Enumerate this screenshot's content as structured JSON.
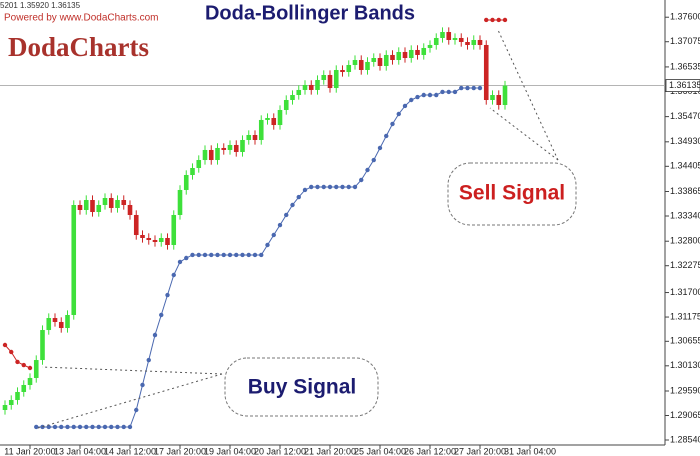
{
  "chart_data": {
    "type": "candlestick",
    "title": "Doda-Bollinger Bands",
    "header_text": "5201 1.35920 1.36135",
    "credit": "Powered by www.DodaCharts.com",
    "logo": "DodaCharts",
    "annotations": [
      "Sell Signal",
      "Buy Signal"
    ],
    "up_color": "#3ee03a",
    "down_color": "#cc2424",
    "ylim": [
      1.28433,
      1.37969
    ],
    "xlim": [
      -0.8,
      105.6
    ],
    "last_price": 1.36135,
    "yticks": [
      {
        "value": 1.376,
        "label": "1.37600"
      },
      {
        "value": 1.37075,
        "label": "1.37075"
      },
      {
        "value": 1.36535,
        "label": "1.36535"
      },
      {
        "value": 1.3601,
        "label": "1.36010"
      },
      {
        "value": 1.3547,
        "label": "1.35470"
      },
      {
        "value": 1.3493,
        "label": "1.34930"
      },
      {
        "value": 1.34405,
        "label": "1.34405"
      },
      {
        "value": 1.33865,
        "label": "1.33865"
      },
      {
        "value": 1.3334,
        "label": "1.33340"
      },
      {
        "value": 1.328,
        "label": "1.32800"
      },
      {
        "value": 1.32275,
        "label": "1.32275"
      },
      {
        "value": 1.317,
        "label": "1.31700"
      },
      {
        "value": 1.31175,
        "label": "1.31175"
      },
      {
        "value": 1.30655,
        "label": "1.30655"
      },
      {
        "value": 1.3013,
        "label": "1.30130"
      },
      {
        "value": 1.2959,
        "label": "1.29590"
      },
      {
        "value": 1.29065,
        "label": "1.29065"
      },
      {
        "value": 1.2854,
        "label": "1.28540"
      }
    ],
    "xticks": [
      {
        "value": 4,
        "label": "11 Jan 20:00"
      },
      {
        "value": 12,
        "label": "13 Jan 04:00"
      },
      {
        "value": 20,
        "label": "14 Jan 12:00"
      },
      {
        "value": 28,
        "label": "17 Jan 20:00"
      },
      {
        "value": 36,
        "label": "19 Jan 04:00"
      },
      {
        "value": 44,
        "label": "20 Jan 12:00"
      },
      {
        "value": 52,
        "label": "21 Jan 20:00"
      },
      {
        "value": 60,
        "label": "25 Jan 04:00"
      },
      {
        "value": 68,
        "label": "26 Jan 12:00"
      },
      {
        "value": 76,
        "label": "27 Jan 20:00"
      },
      {
        "value": 84,
        "label": "31 Jan 04:00"
      }
    ],
    "candles": {
      "open": [
        1.29183,
        1.2929,
        1.29397,
        1.29569,
        1.29719,
        1.29869,
        1.30254,
        1.30897,
        1.31154,
        1.31069,
        1.3094,
        1.31219,
        1.33576,
        1.33469,
        1.33683,
        1.33426,
        1.33576,
        1.33726,
        1.33512,
        1.33683,
        1.33576,
        1.33362,
        1.32933,
        1.32869,
        1.32826,
        1.32783,
        1.32869,
        1.32719,
        1.33362,
        1.33898,
        1.34219,
        1.34369,
        1.3454,
        1.34755,
        1.3454,
        1.34798,
        1.34755,
        1.34862,
        1.34712,
        1.34969,
        1.35076,
        1.34969,
        1.35398,
        1.3544,
        1.3529,
        1.35612,
        1.35826,
        1.35933,
        1.36041,
        1.36148,
        1.36041,
        1.36255,
        1.36362,
        1.36083,
        1.36469,
        1.36426,
        1.36576,
        1.36683,
        1.36469,
        1.36641,
        1.36726,
        1.36555,
        1.36791,
        1.36683,
        1.36855,
        1.36726,
        1.36898,
        1.36791,
        1.36941,
        1.37005,
        1.37155,
        1.37283,
        1.37112,
        1.37155,
        1.37069,
        1.37005,
        1.37112,
        1.37005,
        1.35826,
        1.35933,
        1.35719
      ],
      "high": [
        1.2939,
        1.29497,
        1.29669,
        1.29819,
        1.29969,
        1.30354,
        1.30997,
        1.31254,
        1.31254,
        1.31169,
        1.31319,
        1.33676,
        1.33676,
        1.33783,
        1.33783,
        1.33676,
        1.33826,
        1.33826,
        1.33783,
        1.33783,
        1.33676,
        1.33462,
        1.33033,
        1.32969,
        1.32926,
        1.32969,
        1.32969,
        1.33462,
        1.33998,
        1.34319,
        1.34469,
        1.3464,
        1.34855,
        1.34855,
        1.34898,
        1.34898,
        1.34962,
        1.34962,
        1.35069,
        1.35176,
        1.35176,
        1.35498,
        1.3554,
        1.3554,
        1.35712,
        1.35926,
        1.36033,
        1.36141,
        1.36248,
        1.36248,
        1.36355,
        1.36462,
        1.36462,
        1.36569,
        1.36569,
        1.36676,
        1.36783,
        1.36783,
        1.36741,
        1.36826,
        1.36826,
        1.36891,
        1.36891,
        1.36955,
        1.36955,
        1.36998,
        1.36998,
        1.37041,
        1.37105,
        1.37255,
        1.37383,
        1.37383,
        1.37255,
        1.37255,
        1.37169,
        1.37212,
        1.37212,
        1.37105,
        1.36033,
        1.36033,
        1.36235
      ],
      "low": [
        1.29083,
        1.2919,
        1.29297,
        1.29469,
        1.29619,
        1.29769,
        1.30154,
        1.30797,
        1.30969,
        1.3084,
        1.3084,
        1.31119,
        1.33369,
        1.33369,
        1.33326,
        1.33326,
        1.33476,
        1.33412,
        1.33412,
        1.33476,
        1.33262,
        1.32833,
        1.32769,
        1.32726,
        1.32683,
        1.32683,
        1.32619,
        1.32619,
        1.33262,
        1.33798,
        1.34119,
        1.34269,
        1.3444,
        1.3444,
        1.3444,
        1.34655,
        1.34655,
        1.34612,
        1.34612,
        1.34869,
        1.34869,
        1.34869,
        1.35298,
        1.3519,
        1.3519,
        1.35512,
        1.35726,
        1.35833,
        1.35941,
        1.35941,
        1.35941,
        1.36155,
        1.35983,
        1.35983,
        1.36326,
        1.36326,
        1.36476,
        1.36369,
        1.36369,
        1.36541,
        1.36455,
        1.36455,
        1.36583,
        1.36583,
        1.36626,
        1.36626,
        1.36691,
        1.36691,
        1.36841,
        1.36905,
        1.37055,
        1.37012,
        1.37012,
        1.36969,
        1.36905,
        1.36905,
        1.36905,
        1.35726,
        1.35726,
        1.35619,
        1.35619
      ],
      "close": [
        1.2929,
        1.29397,
        1.29569,
        1.29719,
        1.29869,
        1.30254,
        1.30897,
        1.31154,
        1.31069,
        1.3094,
        1.31219,
        1.33576,
        1.33469,
        1.33683,
        1.33426,
        1.33576,
        1.33726,
        1.33512,
        1.33683,
        1.33576,
        1.33362,
        1.32933,
        1.32869,
        1.32826,
        1.32783,
        1.32869,
        1.32719,
        1.33362,
        1.33898,
        1.34219,
        1.34369,
        1.3454,
        1.34755,
        1.3454,
        1.34798,
        1.34755,
        1.34862,
        1.34712,
        1.34969,
        1.35076,
        1.34969,
        1.35398,
        1.3544,
        1.3529,
        1.35612,
        1.35826,
        1.35933,
        1.36041,
        1.36148,
        1.36041,
        1.36255,
        1.36362,
        1.36083,
        1.36469,
        1.36426,
        1.36576,
        1.36683,
        1.36469,
        1.36641,
        1.36726,
        1.36555,
        1.36791,
        1.36683,
        1.36855,
        1.36726,
        1.36898,
        1.36791,
        1.36941,
        1.37005,
        1.37155,
        1.37283,
        1.37112,
        1.37155,
        1.37069,
        1.37005,
        1.37112,
        1.37005,
        1.35826,
        1.35933,
        1.35719,
        1.36135
      ]
    },
    "series": [
      {
        "color": "#cc2424",
        "values": [
          1.30576,
          1.30426,
          1.30212,
          1.30147,
          1.30083,
          null,
          null,
          null,
          null,
          null,
          null,
          null,
          null,
          null,
          null,
          null,
          null,
          null,
          null,
          null,
          null,
          null,
          null,
          null,
          null,
          null,
          null,
          null,
          null,
          null,
          null,
          null,
          null,
          null,
          null,
          null,
          null,
          null,
          null,
          null,
          null,
          null,
          null,
          null,
          null,
          null,
          null,
          null,
          null,
          null,
          null,
          null,
          null,
          null,
          null,
          null,
          null,
          null,
          null,
          null,
          null,
          null,
          null,
          null,
          null,
          null,
          null,
          null,
          null,
          null,
          null,
          null,
          null,
          null,
          null,
          null,
          null,
          1.37541,
          1.37541,
          1.37541,
          1.37541
        ]
      },
      {
        "color": "#4a68b0",
        "values": [
          null,
          null,
          null,
          null,
          null,
          1.28819,
          1.28819,
          1.28819,
          1.28819,
          1.28819,
          1.28819,
          1.28819,
          1.28819,
          1.28819,
          1.28819,
          1.28819,
          1.28819,
          1.28819,
          1.28819,
          1.28819,
          1.28819,
          1.29183,
          1.29719,
          1.30254,
          1.3079,
          1.31219,
          1.31647,
          1.32076,
          1.32355,
          1.3244,
          1.32505,
          1.32505,
          1.32505,
          1.32505,
          1.32505,
          1.32505,
          1.32505,
          1.32505,
          1.32505,
          1.32505,
          1.32505,
          1.32505,
          1.32719,
          1.32933,
          1.33147,
          1.33362,
          1.33576,
          1.33747,
          1.33898,
          1.33962,
          1.33962,
          1.33962,
          1.33962,
          1.33962,
          1.33962,
          1.33962,
          1.33962,
          1.34112,
          1.34326,
          1.3454,
          1.34798,
          1.35055,
          1.35312,
          1.35526,
          1.35698,
          1.35826,
          1.3589,
          1.35933,
          1.35933,
          1.35933,
          1.35998,
          1.35998,
          1.35998,
          1.36083,
          1.36083,
          1.36083,
          1.36083,
          null,
          null,
          null,
          null
        ]
      }
    ]
  }
}
